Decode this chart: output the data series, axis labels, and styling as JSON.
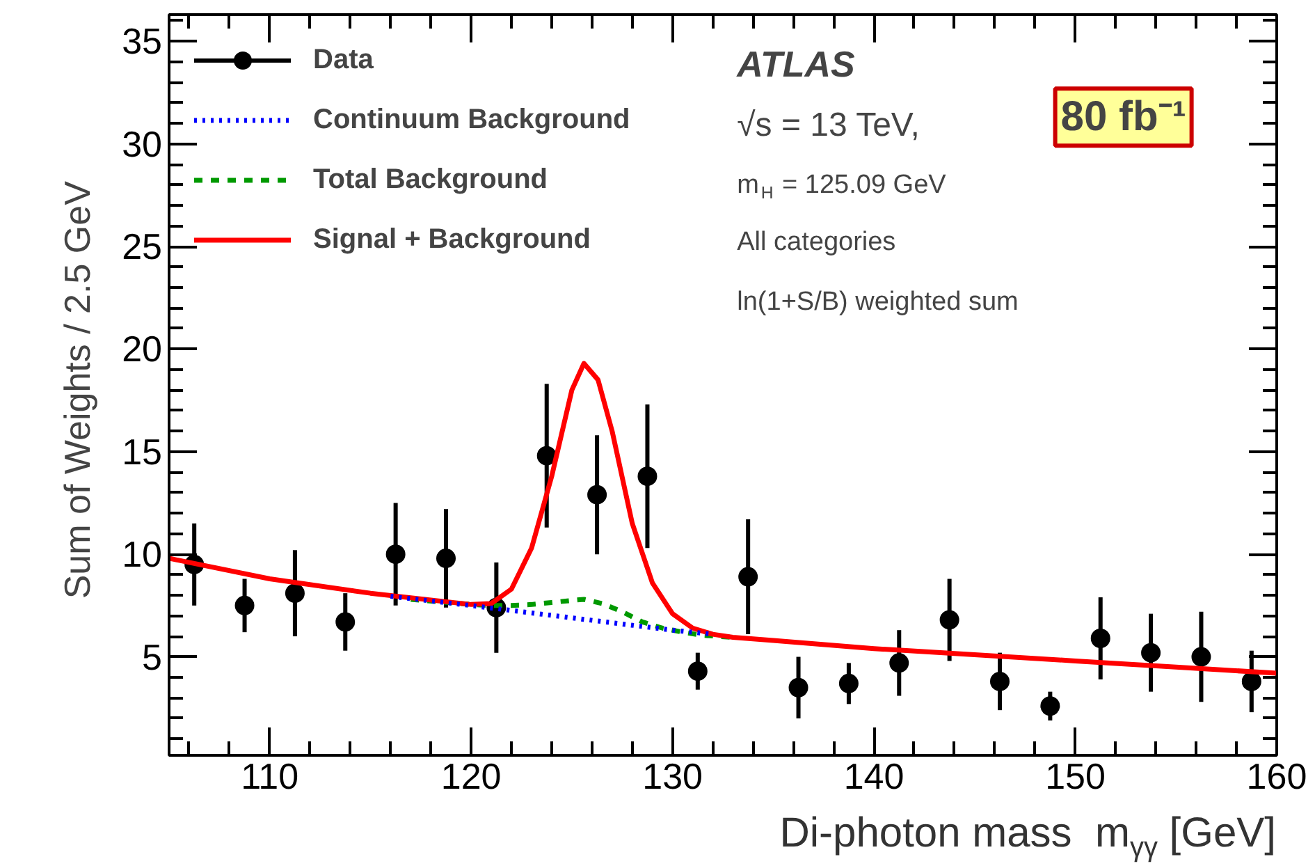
{
  "chart_data": {
    "type": "scatter",
    "xlabel": "Di-photon mass   m$_{γγ}$ [GeV]",
    "ylabel": "Sum of Weights /  2.5 GeV",
    "xlim": [
      105,
      160
    ],
    "ylim": [
      0.2,
      36.3
    ],
    "xticks": [
      110,
      120,
      130,
      140,
      150,
      160
    ],
    "yticks": [
      5,
      10,
      15,
      20,
      25,
      30,
      35
    ],
    "grid": false,
    "legend": "top left",
    "series": [
      {
        "name": "Data",
        "marker": "circle",
        "color": "#000000",
        "x": [
          106.25,
          108.75,
          111.25,
          113.75,
          116.25,
          118.75,
          121.25,
          123.75,
          126.25,
          128.75,
          131.25,
          133.75,
          136.25,
          138.75,
          141.25,
          143.75,
          146.25,
          148.75,
          151.25,
          153.75,
          156.25,
          158.75
        ],
        "values": [
          9.5,
          7.5,
          8.1,
          6.7,
          10.0,
          9.8,
          7.4,
          14.8,
          12.9,
          13.8,
          4.3,
          8.9,
          3.5,
          3.7,
          4.7,
          6.8,
          3.8,
          2.6,
          5.9,
          5.2,
          5.0,
          3.8
        ],
        "errors": [
          2.0,
          1.3,
          2.1,
          1.4,
          2.5,
          2.4,
          2.2,
          3.5,
          2.9,
          3.5,
          0.9,
          2.8,
          1.5,
          1.0,
          1.6,
          2.0,
          1.4,
          0.7,
          2.0,
          1.9,
          2.2,
          1.5
        ]
      },
      {
        "name": "Continuum Background",
        "type": "line",
        "line_style": "dotted",
        "color": "#0000ff",
        "x": [
          116,
          120,
          125,
          130,
          132
        ],
        "values": [
          7.95,
          7.5,
          6.9,
          6.3,
          6.1
        ]
      },
      {
        "name": "Total Background",
        "type": "line",
        "line_style": "dashed",
        "color": "#009900",
        "x": [
          117,
          120,
          121,
          122,
          123,
          124,
          125,
          125.6,
          126.5,
          127.5,
          128.5,
          129.5,
          130.5,
          131.5,
          133
        ],
        "values": [
          7.8,
          7.55,
          7.5,
          7.5,
          7.55,
          7.65,
          7.75,
          7.8,
          7.6,
          7.2,
          6.7,
          6.4,
          6.2,
          6.05,
          5.95
        ]
      },
      {
        "name": "Signal + Background",
        "type": "line",
        "line_style": "solid",
        "color": "#ff0000",
        "x": [
          105,
          110,
          115,
          120,
          121,
          122,
          123,
          124,
          125,
          125.6,
          126.3,
          127,
          128,
          129,
          130,
          131,
          132,
          133,
          135,
          140,
          145,
          150,
          155,
          160
        ],
        "values": [
          9.8,
          8.8,
          8.1,
          7.55,
          7.6,
          8.3,
          10.3,
          13.8,
          18.0,
          19.3,
          18.5,
          16.0,
          11.5,
          8.6,
          7.1,
          6.4,
          6.1,
          5.95,
          5.8,
          5.4,
          5.1,
          4.8,
          4.5,
          4.2
        ]
      }
    ],
    "annotations": [
      "ATLAS",
      "√s = 13 TeV,",
      "80 fb⁻¹",
      "m$_{H}$ = 125.09 GeV",
      "All categories",
      "ln(1+S/B) weighted sum"
    ]
  }
}
